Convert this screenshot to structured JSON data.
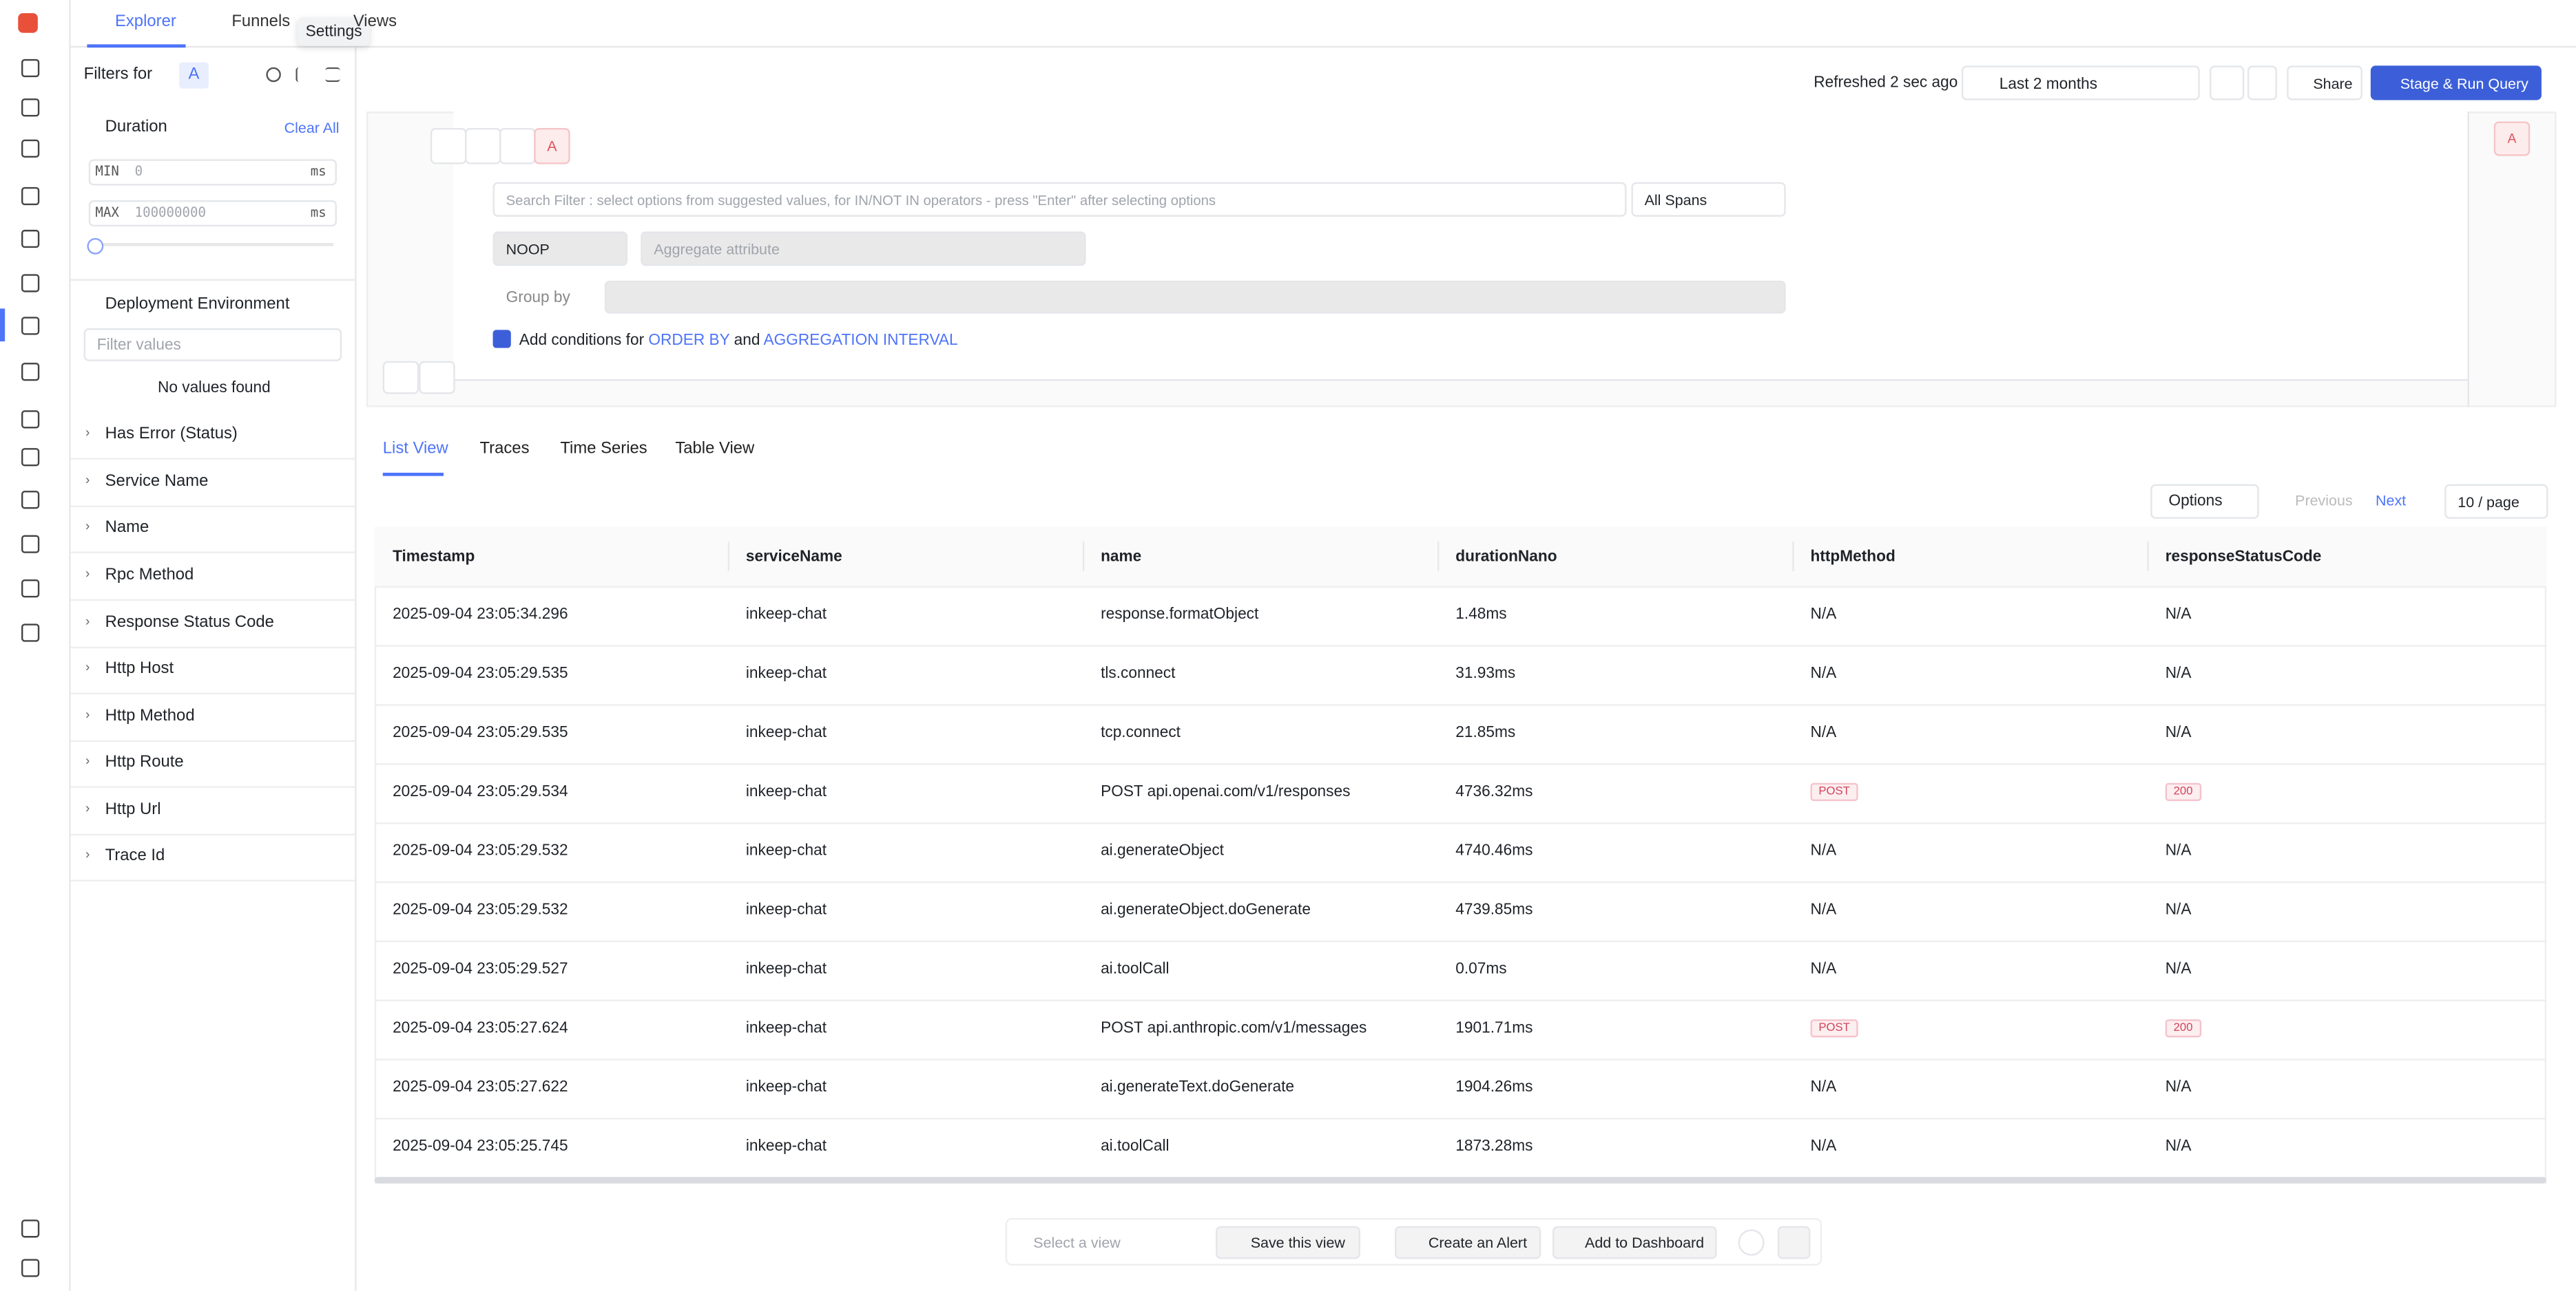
{
  "top_tabs": [
    "Explorer",
    "Funnels",
    "Views"
  ],
  "tooltip": "Settings",
  "filters": {
    "title": "Filters for",
    "query_badge": "A",
    "duration": {
      "label": "Duration",
      "clear": "Clear All",
      "min_label": "MIN",
      "min_placeholder": "0",
      "max_label": "MAX",
      "max_placeholder": "100000000",
      "unit": "ms"
    },
    "deployment": {
      "label": "Deployment Environment",
      "placeholder": "Filter values",
      "empty": "No values found"
    },
    "items": [
      "Has Error (Status)",
      "Service Name",
      "Name",
      "Rpc Method",
      "Response Status Code",
      "Http Host",
      "Http Method",
      "Http Route",
      "Http Url",
      "Trace Id"
    ]
  },
  "toolbar": {
    "refreshed": "Refreshed 2 sec ago",
    "range": "Last 2 months",
    "share": "Share",
    "run": "Stage & Run Query"
  },
  "query": {
    "name": "A",
    "search_placeholder": "Search Filter : select options from suggested values, for IN/NOT IN operators - press \"Enter\" after selecting options",
    "spans": "All Spans",
    "operator": "NOOP",
    "aggregate_placeholder": "Aggregate attribute",
    "group_by": "Group by",
    "add_prefix": "Add conditions for",
    "order_by": "ORDER BY",
    "and": "and",
    "interval": "AGGREGATION INTERVAL",
    "side_badge": "A"
  },
  "view_tabs": [
    "List View",
    "Traces",
    "Time Series",
    "Table View"
  ],
  "pagination": {
    "options": "Options",
    "previous": "Previous",
    "next": "Next",
    "page_size": "10 / page"
  },
  "table": {
    "columns": [
      "Timestamp",
      "serviceName",
      "name",
      "durationNano",
      "httpMethod",
      "responseStatusCode"
    ],
    "rows": [
      [
        "2025-09-04 23:05:34.296",
        "inkeep-chat",
        "response.formatObject",
        "1.48ms",
        "N/A",
        "N/A"
      ],
      [
        "2025-09-04 23:05:29.535",
        "inkeep-chat",
        "tls.connect",
        "31.93ms",
        "N/A",
        "N/A"
      ],
      [
        "2025-09-04 23:05:29.535",
        "inkeep-chat",
        "tcp.connect",
        "21.85ms",
        "N/A",
        "N/A"
      ],
      [
        "2025-09-04 23:05:29.534",
        "inkeep-chat",
        "POST api.openai.com/v1/responses",
        "4736.32ms",
        "POST",
        "200"
      ],
      [
        "2025-09-04 23:05:29.532",
        "inkeep-chat",
        "ai.generateObject",
        "4740.46ms",
        "N/A",
        "N/A"
      ],
      [
        "2025-09-04 23:05:29.532",
        "inkeep-chat",
        "ai.generateObject.doGenerate",
        "4739.85ms",
        "N/A",
        "N/A"
      ],
      [
        "2025-09-04 23:05:29.527",
        "inkeep-chat",
        "ai.toolCall",
        "0.07ms",
        "N/A",
        "N/A"
      ],
      [
        "2025-09-04 23:05:27.624",
        "inkeep-chat",
        "POST api.anthropic.com/v1/messages",
        "1901.71ms",
        "POST",
        "200"
      ],
      [
        "2025-09-04 23:05:27.622",
        "inkeep-chat",
        "ai.generateText.doGenerate",
        "1904.26ms",
        "N/A",
        "N/A"
      ],
      [
        "2025-09-04 23:05:25.745",
        "inkeep-chat",
        "ai.toolCall",
        "1873.28ms",
        "N/A",
        "N/A"
      ]
    ]
  },
  "bottom_bar": {
    "select_view": "Select a view",
    "save": "Save this view",
    "alert": "Create an Alert",
    "dashboard": "Add to Dashboard"
  }
}
